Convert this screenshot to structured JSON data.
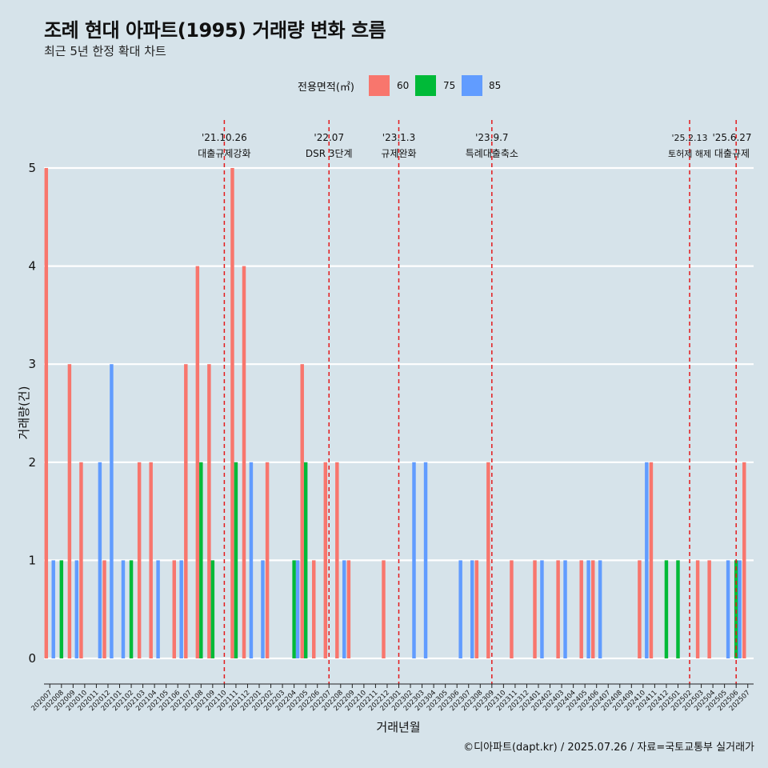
{
  "title": "조례 현대 아파트(1995) 거래량 변화 흐름",
  "subtitle": "최근 5년 한정 확대 차트",
  "caption": "©디아파트(dapt.kr) / 2025.07.26 / 자료=국토교통부 실거래가",
  "legend": {
    "title": "전용면적(㎡)",
    "items": [
      {
        "label": "60",
        "color": "#f8766d"
      },
      {
        "label": "75",
        "color": "#00ba38"
      },
      {
        "label": "85",
        "color": "#619cff"
      }
    ]
  },
  "chart_data": {
    "type": "bar",
    "xlabel": "거래년월",
    "ylabel": "거래량(건)",
    "ylim": [
      0,
      5
    ],
    "yticks": [
      0,
      1,
      2,
      3,
      4,
      5
    ],
    "grid": true,
    "categories": [
      "202007",
      "202008",
      "202009",
      "202010",
      "202011",
      "202012",
      "202101",
      "202102",
      "202103",
      "202104",
      "202105",
      "202106",
      "202107",
      "202108",
      "202109",
      "202110",
      "202111",
      "202112",
      "202201",
      "202202",
      "202203",
      "202204",
      "202205",
      "202206",
      "202207",
      "202208",
      "202209",
      "202210",
      "202211",
      "202212",
      "202301",
      "202302",
      "202303",
      "202304",
      "202305",
      "202306",
      "202307",
      "202308",
      "202309",
      "202310",
      "202311",
      "202312",
      "202401",
      "202402",
      "202403",
      "202404",
      "202405",
      "202406",
      "202407",
      "202408",
      "202409",
      "202410",
      "202411",
      "202412",
      "202501",
      "202502",
      "202503",
      "202504",
      "202505",
      "202506",
      "202507"
    ],
    "series": [
      {
        "name": "60",
        "color": "#f8766d",
        "values": [
          5,
          0,
          3,
          2,
          0,
          1,
          0,
          0,
          2,
          2,
          0,
          1,
          3,
          4,
          3,
          0,
          5,
          4,
          0,
          2,
          0,
          0,
          3,
          1,
          2,
          2,
          1,
          0,
          0,
          1,
          0,
          0,
          0,
          0,
          0,
          0,
          0,
          1,
          2,
          0,
          1,
          0,
          1,
          0,
          1,
          0,
          1,
          1,
          0,
          0,
          0,
          1,
          2,
          0,
          0,
          0,
          1,
          1,
          0,
          0,
          2
        ]
      },
      {
        "name": "75",
        "color": "#00ba38",
        "values": [
          0,
          1,
          0,
          0,
          0,
          0,
          0,
          1,
          0,
          0,
          0,
          0,
          0,
          2,
          1,
          0,
          2,
          0,
          0,
          0,
          0,
          1,
          2,
          0,
          0,
          0,
          0,
          0,
          0,
          0,
          0,
          0,
          0,
          0,
          0,
          0,
          0,
          0,
          0,
          0,
          0,
          0,
          0,
          0,
          0,
          0,
          0,
          0,
          0,
          0,
          0,
          0,
          0,
          1,
          1,
          0,
          0,
          0,
          0,
          1,
          0
        ]
      },
      {
        "name": "85",
        "color": "#619cff",
        "values": [
          1,
          0,
          1,
          0,
          2,
          3,
          1,
          0,
          0,
          1,
          0,
          1,
          0,
          0,
          0,
          0,
          0,
          2,
          1,
          0,
          0,
          1,
          0,
          0,
          0,
          1,
          0,
          0,
          0,
          0,
          0,
          2,
          2,
          0,
          0,
          1,
          1,
          0,
          0,
          0,
          0,
          0,
          1,
          0,
          1,
          0,
          1,
          1,
          0,
          0,
          0,
          2,
          0,
          0,
          0,
          0,
          0,
          0,
          1,
          1,
          0
        ]
      }
    ],
    "events": [
      {
        "category": "202110",
        "date": "'21.10.26",
        "label": "대출규제강화"
      },
      {
        "category": "202207",
        "date": "'22.07",
        "label": "DSR 3단계"
      },
      {
        "category": "202301",
        "date": "'23.1.3",
        "label": "규제완화"
      },
      {
        "category": "202309",
        "date": "'23.9.7",
        "label": "특례대출축소"
      },
      {
        "category": "202502",
        "date": "'25.2.13",
        "label": "토허제 해제"
      },
      {
        "category": "202506",
        "date": "'25.6.27",
        "label": "대출규제"
      }
    ]
  }
}
